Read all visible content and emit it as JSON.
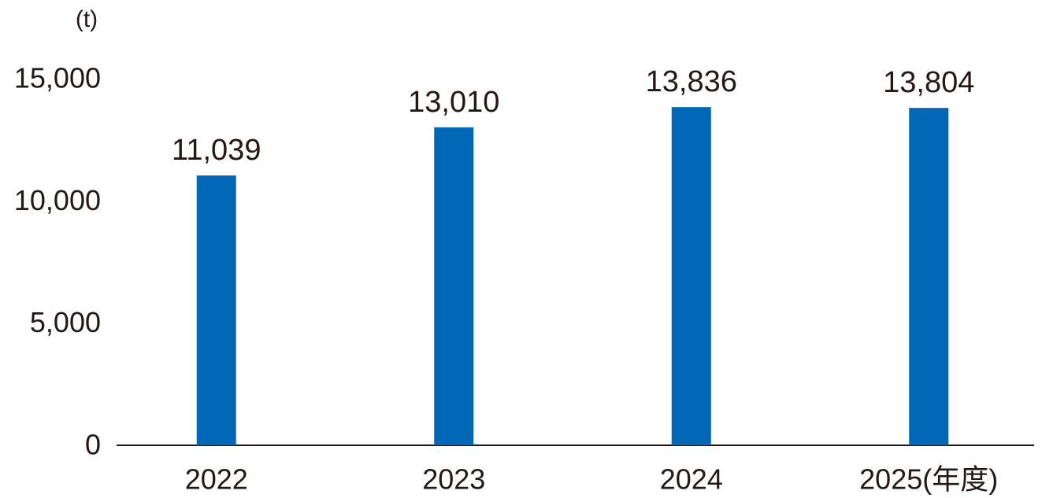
{
  "chart_data": {
    "type": "bar",
    "y_label": "(t)",
    "x_label": "(年度)",
    "categories": [
      "2022",
      "2023",
      "2024",
      "2025"
    ],
    "values": [
      11039,
      13010,
      13836,
      13804
    ],
    "value_labels": [
      "11,039",
      "13,010",
      "13,836",
      "13,804"
    ],
    "color": "#0068b7",
    "ylim": [
      0,
      15000
    ],
    "yticks": [
      0,
      {
        "value": 5000,
        "label": "5,000"
      },
      {
        "value": 10000,
        "label": "10,000"
      },
      {
        "value": 15000,
        "label": "15,000"
      }
    ],
    "grid": false
  }
}
